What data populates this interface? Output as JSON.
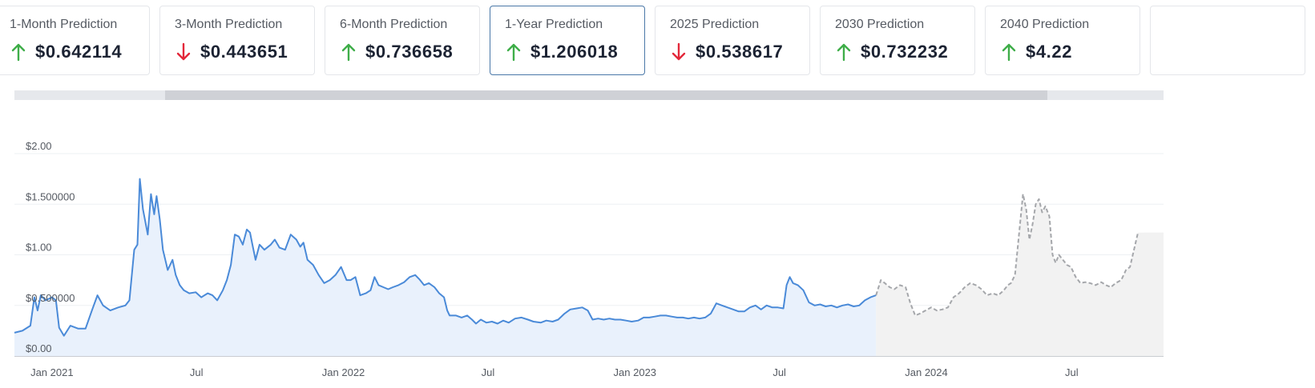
{
  "predictions": [
    {
      "title": "1-Month Prediction",
      "direction": "up",
      "value": "$0.642114"
    },
    {
      "title": "3-Month Prediction",
      "direction": "down",
      "value": "$0.443651"
    },
    {
      "title": "6-Month Prediction",
      "direction": "up",
      "value": "$0.736658"
    },
    {
      "title": "1-Year Prediction",
      "direction": "up",
      "value": "$1.206018",
      "selected": true
    },
    {
      "title": "2025 Prediction",
      "direction": "down",
      "value": "$0.538617"
    },
    {
      "title": "2030 Prediction",
      "direction": "up",
      "value": "$0.732232"
    },
    {
      "title": "2040 Prediction",
      "direction": "up",
      "value": "$4.22"
    }
  ],
  "colors": {
    "up": "#3fae49",
    "down": "#e3283a",
    "history_line": "#4a8ad8",
    "history_fill": "#e9f1fc",
    "forecast_line": "#a5a7ab",
    "forecast_fill": "#f2f2f2"
  },
  "chart_data": {
    "type": "area",
    "ylim": [
      0,
      2.0
    ],
    "y_ticks": [
      {
        "label": "$2.00",
        "value": 2.0
      },
      {
        "label": "$1.500000",
        "value": 1.5
      },
      {
        "label": "$1.00",
        "value": 1.0
      },
      {
        "label": "$0.500000",
        "value": 0.5
      },
      {
        "label": "$0.00",
        "value": 0.0
      }
    ],
    "x_range": [
      "2020-11-15",
      "2024-10-15"
    ],
    "x_ticks": [
      {
        "label": "Jan 2021",
        "date": "2021-01-01"
      },
      {
        "label": "Jul",
        "date": "2021-07-01"
      },
      {
        "label": "Jan 2022",
        "date": "2022-01-01"
      },
      {
        "label": "Jul",
        "date": "2022-07-01"
      },
      {
        "label": "Jan 2023",
        "date": "2023-01-01"
      },
      {
        "label": "Jul",
        "date": "2023-07-01"
      },
      {
        "label": "Jan 2024",
        "date": "2024-01-01"
      },
      {
        "label": "Jul",
        "date": "2024-07-01"
      }
    ],
    "series": [
      {
        "style": "historical",
        "points": [
          [
            "2020-11-15",
            0.23
          ],
          [
            "2020-11-25",
            0.25
          ],
          [
            "2020-12-05",
            0.3
          ],
          [
            "2020-12-10",
            0.58
          ],
          [
            "2020-12-14",
            0.45
          ],
          [
            "2020-12-18",
            0.6
          ],
          [
            "2020-12-24",
            0.55
          ],
          [
            "2021-01-01",
            0.58
          ],
          [
            "2021-01-06",
            0.55
          ],
          [
            "2021-01-10",
            0.28
          ],
          [
            "2021-01-16",
            0.2
          ],
          [
            "2021-01-24",
            0.3
          ],
          [
            "2021-02-03",
            0.27
          ],
          [
            "2021-02-12",
            0.27
          ],
          [
            "2021-02-20",
            0.45
          ],
          [
            "2021-02-27",
            0.6
          ],
          [
            "2021-03-06",
            0.5
          ],
          [
            "2021-03-15",
            0.45
          ],
          [
            "2021-03-25",
            0.48
          ],
          [
            "2021-04-03",
            0.5
          ],
          [
            "2021-04-08",
            0.55
          ],
          [
            "2021-04-14",
            1.05
          ],
          [
            "2021-04-18",
            1.1
          ],
          [
            "2021-04-21",
            1.75
          ],
          [
            "2021-04-25",
            1.45
          ],
          [
            "2021-05-01",
            1.2
          ],
          [
            "2021-05-05",
            1.6
          ],
          [
            "2021-05-09",
            1.4
          ],
          [
            "2021-05-12",
            1.58
          ],
          [
            "2021-05-16",
            1.35
          ],
          [
            "2021-05-20",
            1.05
          ],
          [
            "2021-05-26",
            0.85
          ],
          [
            "2021-06-01",
            0.95
          ],
          [
            "2021-06-05",
            0.8
          ],
          [
            "2021-06-10",
            0.7
          ],
          [
            "2021-06-15",
            0.65
          ],
          [
            "2021-06-22",
            0.62
          ],
          [
            "2021-06-30",
            0.63
          ],
          [
            "2021-07-07",
            0.58
          ],
          [
            "2021-07-15",
            0.62
          ],
          [
            "2021-07-21",
            0.6
          ],
          [
            "2021-07-27",
            0.55
          ],
          [
            "2021-08-03",
            0.65
          ],
          [
            "2021-08-08",
            0.75
          ],
          [
            "2021-08-13",
            0.9
          ],
          [
            "2021-08-18",
            1.2
          ],
          [
            "2021-08-23",
            1.18
          ],
          [
            "2021-08-28",
            1.1
          ],
          [
            "2021-09-02",
            1.25
          ],
          [
            "2021-09-06",
            1.22
          ],
          [
            "2021-09-09",
            1.1
          ],
          [
            "2021-09-13",
            0.95
          ],
          [
            "2021-09-18",
            1.1
          ],
          [
            "2021-09-24",
            1.05
          ],
          [
            "2021-10-02",
            1.1
          ],
          [
            "2021-10-07",
            1.15
          ],
          [
            "2021-10-13",
            1.07
          ],
          [
            "2021-10-20",
            1.05
          ],
          [
            "2021-10-27",
            1.2
          ],
          [
            "2021-11-03",
            1.15
          ],
          [
            "2021-11-08",
            1.08
          ],
          [
            "2021-11-12",
            1.12
          ],
          [
            "2021-11-17",
            0.95
          ],
          [
            "2021-11-24",
            0.9
          ],
          [
            "2021-12-01",
            0.8
          ],
          [
            "2021-12-08",
            0.72
          ],
          [
            "2021-12-15",
            0.75
          ],
          [
            "2021-12-22",
            0.8
          ],
          [
            "2021-12-29",
            0.88
          ],
          [
            "2022-01-05",
            0.75
          ],
          [
            "2022-01-10",
            0.75
          ],
          [
            "2022-01-16",
            0.78
          ],
          [
            "2022-01-22",
            0.6
          ],
          [
            "2022-01-29",
            0.62
          ],
          [
            "2022-02-04",
            0.65
          ],
          [
            "2022-02-09",
            0.78
          ],
          [
            "2022-02-14",
            0.7
          ],
          [
            "2022-02-20",
            0.68
          ],
          [
            "2022-02-26",
            0.66
          ],
          [
            "2022-03-04",
            0.68
          ],
          [
            "2022-03-11",
            0.7
          ],
          [
            "2022-03-18",
            0.73
          ],
          [
            "2022-03-25",
            0.78
          ],
          [
            "2022-04-01",
            0.8
          ],
          [
            "2022-04-06",
            0.76
          ],
          [
            "2022-04-12",
            0.7
          ],
          [
            "2022-04-18",
            0.72
          ],
          [
            "2022-04-25",
            0.68
          ],
          [
            "2022-05-01",
            0.62
          ],
          [
            "2022-05-07",
            0.58
          ],
          [
            "2022-05-11",
            0.45
          ],
          [
            "2022-05-14",
            0.4
          ],
          [
            "2022-05-22",
            0.4
          ],
          [
            "2022-05-29",
            0.38
          ],
          [
            "2022-06-05",
            0.4
          ],
          [
            "2022-06-11",
            0.36
          ],
          [
            "2022-06-16",
            0.32
          ],
          [
            "2022-06-22",
            0.36
          ],
          [
            "2022-06-29",
            0.33
          ],
          [
            "2022-07-06",
            0.34
          ],
          [
            "2022-07-13",
            0.32
          ],
          [
            "2022-07-20",
            0.35
          ],
          [
            "2022-07-27",
            0.33
          ],
          [
            "2022-08-04",
            0.37
          ],
          [
            "2022-08-12",
            0.38
          ],
          [
            "2022-08-20",
            0.36
          ],
          [
            "2022-08-27",
            0.34
          ],
          [
            "2022-09-05",
            0.33
          ],
          [
            "2022-09-12",
            0.35
          ],
          [
            "2022-09-20",
            0.34
          ],
          [
            "2022-09-27",
            0.36
          ],
          [
            "2022-10-05",
            0.42
          ],
          [
            "2022-10-12",
            0.46
          ],
          [
            "2022-10-20",
            0.47
          ],
          [
            "2022-10-27",
            0.48
          ],
          [
            "2022-11-03",
            0.45
          ],
          [
            "2022-11-09",
            0.36
          ],
          [
            "2022-11-16",
            0.37
          ],
          [
            "2022-11-23",
            0.36
          ],
          [
            "2022-11-30",
            0.37
          ],
          [
            "2022-12-07",
            0.36
          ],
          [
            "2022-12-14",
            0.36
          ],
          [
            "2022-12-21",
            0.35
          ],
          [
            "2022-12-28",
            0.34
          ],
          [
            "2023-01-05",
            0.35
          ],
          [
            "2023-01-12",
            0.38
          ],
          [
            "2023-01-19",
            0.38
          ],
          [
            "2023-01-26",
            0.39
          ],
          [
            "2023-02-02",
            0.4
          ],
          [
            "2023-02-09",
            0.4
          ],
          [
            "2023-02-16",
            0.39
          ],
          [
            "2023-02-23",
            0.38
          ],
          [
            "2023-03-02",
            0.38
          ],
          [
            "2023-03-09",
            0.37
          ],
          [
            "2023-03-16",
            0.38
          ],
          [
            "2023-03-23",
            0.37
          ],
          [
            "2023-03-30",
            0.38
          ],
          [
            "2023-04-06",
            0.42
          ],
          [
            "2023-04-13",
            0.52
          ],
          [
            "2023-04-20",
            0.5
          ],
          [
            "2023-04-27",
            0.48
          ],
          [
            "2023-05-04",
            0.46
          ],
          [
            "2023-05-11",
            0.44
          ],
          [
            "2023-05-18",
            0.44
          ],
          [
            "2023-05-25",
            0.48
          ],
          [
            "2023-06-01",
            0.5
          ],
          [
            "2023-06-08",
            0.46
          ],
          [
            "2023-06-15",
            0.5
          ],
          [
            "2023-06-22",
            0.48
          ],
          [
            "2023-06-29",
            0.48
          ],
          [
            "2023-07-06",
            0.47
          ],
          [
            "2023-07-10",
            0.7
          ],
          [
            "2023-07-14",
            0.78
          ],
          [
            "2023-07-18",
            0.72
          ],
          [
            "2023-07-24",
            0.7
          ],
          [
            "2023-07-31",
            0.65
          ],
          [
            "2023-08-07",
            0.53
          ],
          [
            "2023-08-14",
            0.5
          ],
          [
            "2023-08-21",
            0.51
          ],
          [
            "2023-08-28",
            0.49
          ],
          [
            "2023-09-04",
            0.5
          ],
          [
            "2023-09-11",
            0.48
          ],
          [
            "2023-09-18",
            0.5
          ],
          [
            "2023-09-25",
            0.51
          ],
          [
            "2023-10-02",
            0.49
          ],
          [
            "2023-10-09",
            0.5
          ],
          [
            "2023-10-16",
            0.55
          ],
          [
            "2023-10-23",
            0.58
          ],
          [
            "2023-10-30",
            0.6
          ]
        ]
      },
      {
        "style": "forecast",
        "points": [
          [
            "2023-10-30",
            0.6
          ],
          [
            "2023-11-05",
            0.75
          ],
          [
            "2023-11-10",
            0.72
          ],
          [
            "2023-11-16",
            0.68
          ],
          [
            "2023-11-22",
            0.66
          ],
          [
            "2023-11-29",
            0.7
          ],
          [
            "2023-12-06",
            0.68
          ],
          [
            "2023-12-12",
            0.52
          ],
          [
            "2023-12-18",
            0.4
          ],
          [
            "2023-12-24",
            0.42
          ],
          [
            "2023-12-31",
            0.45
          ],
          [
            "2024-01-07",
            0.48
          ],
          [
            "2024-01-14",
            0.45
          ],
          [
            "2024-01-21",
            0.46
          ],
          [
            "2024-01-28",
            0.48
          ],
          [
            "2024-02-04",
            0.58
          ],
          [
            "2024-02-11",
            0.62
          ],
          [
            "2024-02-18",
            0.68
          ],
          [
            "2024-02-25",
            0.72
          ],
          [
            "2024-03-03",
            0.7
          ],
          [
            "2024-03-10",
            0.66
          ],
          [
            "2024-03-17",
            0.6
          ],
          [
            "2024-03-24",
            0.62
          ],
          [
            "2024-03-31",
            0.6
          ],
          [
            "2024-04-07",
            0.65
          ],
          [
            "2024-04-12",
            0.7
          ],
          [
            "2024-04-16",
            0.72
          ],
          [
            "2024-04-21",
            0.8
          ],
          [
            "2024-04-26",
            1.2
          ],
          [
            "2024-05-01",
            1.6
          ],
          [
            "2024-05-05",
            1.45
          ],
          [
            "2024-05-09",
            1.15
          ],
          [
            "2024-05-13",
            1.3
          ],
          [
            "2024-05-17",
            1.5
          ],
          [
            "2024-05-21",
            1.55
          ],
          [
            "2024-05-25",
            1.42
          ],
          [
            "2024-05-29",
            1.48
          ],
          [
            "2024-06-03",
            1.38
          ],
          [
            "2024-06-07",
            1.0
          ],
          [
            "2024-06-11",
            0.92
          ],
          [
            "2024-06-15",
            1.0
          ],
          [
            "2024-06-20",
            0.95
          ],
          [
            "2024-06-25",
            0.9
          ],
          [
            "2024-06-30",
            0.88
          ],
          [
            "2024-07-06",
            0.78
          ],
          [
            "2024-07-12",
            0.72
          ],
          [
            "2024-07-18",
            0.73
          ],
          [
            "2024-07-24",
            0.72
          ],
          [
            "2024-07-31",
            0.7
          ],
          [
            "2024-08-07",
            0.73
          ],
          [
            "2024-08-13",
            0.7
          ],
          [
            "2024-08-19",
            0.68
          ],
          [
            "2024-08-25",
            0.72
          ],
          [
            "2024-09-01",
            0.75
          ],
          [
            "2024-09-07",
            0.85
          ],
          [
            "2024-09-12",
            0.88
          ],
          [
            "2024-09-17",
            1.05
          ],
          [
            "2024-09-22",
            1.22
          ]
        ]
      }
    ]
  }
}
